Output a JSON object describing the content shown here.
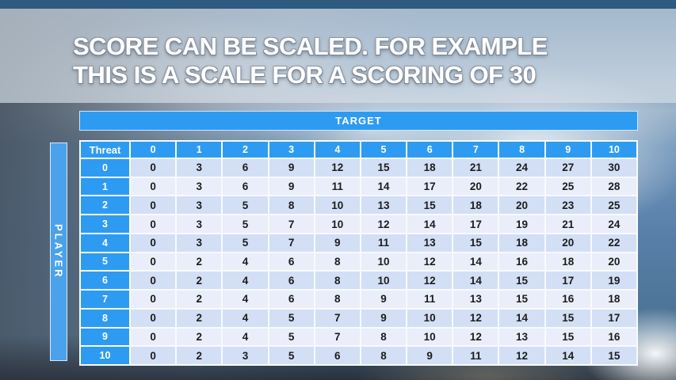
{
  "title": {
    "line1": "SCORE CAN BE SCALED. FOR EXAMPLE",
    "line2": "THIS IS A SCALE FOR A SCORING OF 30"
  },
  "table": {
    "target_label": "TARGET",
    "player_label": "PLAYER",
    "corner_label": "Threat",
    "column_headers": [
      "0",
      "1",
      "2",
      "3",
      "4",
      "5",
      "6",
      "7",
      "8",
      "9",
      "10"
    ],
    "row_headers": [
      "0",
      "1",
      "2",
      "3",
      "4",
      "5",
      "6",
      "7",
      "8",
      "9",
      "10"
    ],
    "rows": [
      [
        0,
        3,
        6,
        9,
        12,
        15,
        18,
        21,
        24,
        27,
        30
      ],
      [
        0,
        3,
        6,
        9,
        11,
        14,
        17,
        20,
        22,
        25,
        28
      ],
      [
        0,
        3,
        5,
        8,
        10,
        13,
        15,
        18,
        20,
        23,
        25
      ],
      [
        0,
        3,
        5,
        7,
        10,
        12,
        14,
        17,
        19,
        21,
        24
      ],
      [
        0,
        3,
        5,
        7,
        9,
        11,
        13,
        15,
        18,
        20,
        22
      ],
      [
        0,
        2,
        4,
        6,
        8,
        10,
        12,
        14,
        16,
        18,
        20
      ],
      [
        0,
        2,
        4,
        6,
        8,
        10,
        12,
        14,
        15,
        17,
        19
      ],
      [
        0,
        2,
        4,
        6,
        8,
        9,
        11,
        13,
        15,
        16,
        18
      ],
      [
        0,
        2,
        4,
        5,
        7,
        9,
        10,
        12,
        14,
        15,
        17
      ],
      [
        0,
        2,
        4,
        5,
        7,
        8,
        10,
        12,
        13,
        15,
        16
      ],
      [
        0,
        2,
        3,
        5,
        6,
        8,
        9,
        11,
        12,
        14,
        15
      ]
    ]
  },
  "colors": {
    "accent_blue": "#2e9bf2",
    "player_bar_blue": "#4aa2ea",
    "row_even": "#d2dff5",
    "row_odd": "#e9eefa",
    "cell_text": "#1c1c1c",
    "top_bar": "#2e5a80"
  }
}
